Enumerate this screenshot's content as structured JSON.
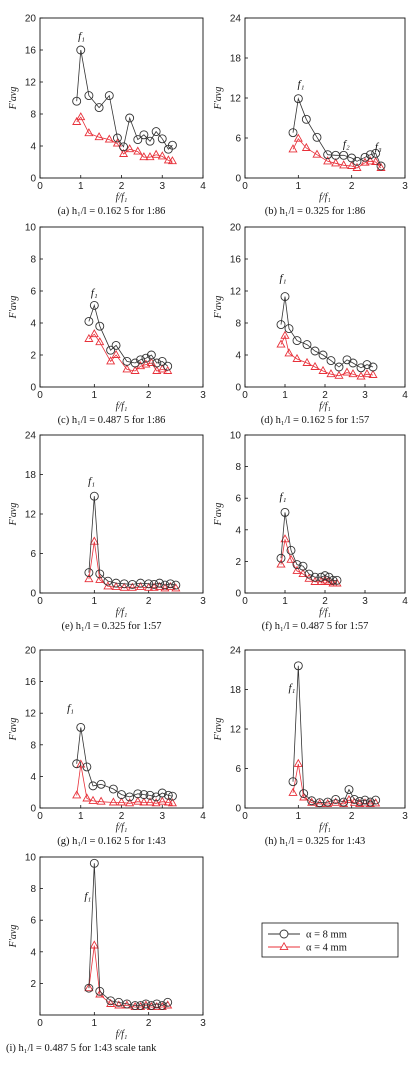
{
  "legend": {
    "series": [
      {
        "label": "α = 8 mm",
        "color": "#333333",
        "marker": "circle"
      },
      {
        "label": "α = 4 mm",
        "color": "#e8313a",
        "marker": "triangle"
      }
    ]
  },
  "chart_data": [
    {
      "id": "a",
      "type": "line",
      "caption": "(a) h₁/l = 0.162 5 for 1:86",
      "xlabel": "f/f₁",
      "ylabel": "F′avg",
      "xlim": [
        0,
        4
      ],
      "ylim": [
        0,
        20
      ],
      "xticks": [
        0,
        1,
        2,
        3,
        4
      ],
      "yticks": [
        0,
        4,
        8,
        12,
        16,
        20
      ],
      "annotations": [
        {
          "text": "f₁",
          "x": 1.02,
          "y": 17.3
        }
      ],
      "series": [
        {
          "name": "α = 8 mm",
          "x": [
            0.9,
            1.0,
            1.2,
            1.45,
            1.7,
            1.9,
            2.05,
            2.2,
            2.4,
            2.55,
            2.7,
            2.85,
            3.0,
            3.15,
            3.25
          ],
          "y": [
            9.6,
            16.0,
            10.3,
            8.8,
            10.3,
            5.0,
            3.9,
            7.5,
            4.8,
            5.4,
            4.6,
            5.8,
            4.9,
            3.6,
            4.1
          ]
        },
        {
          "name": "α = 4 mm",
          "x": [
            0.9,
            1.0,
            1.2,
            1.45,
            1.7,
            1.9,
            2.05,
            2.2,
            2.4,
            2.55,
            2.7,
            2.85,
            3.0,
            3.15,
            3.25
          ],
          "y": [
            7.0,
            7.6,
            5.6,
            5.1,
            4.8,
            4.3,
            3.0,
            3.6,
            3.3,
            2.6,
            2.6,
            2.9,
            2.7,
            2.2,
            2.1
          ]
        }
      ]
    },
    {
      "id": "b",
      "type": "line",
      "caption": "(b) h₁/l = 0.325 for 1:86",
      "xlabel": "f/f₁",
      "ylabel": "F′avg",
      "xlim": [
        0,
        3
      ],
      "ylim": [
        0,
        24
      ],
      "xticks": [
        0,
        1,
        2,
        3
      ],
      "yticks": [
        0,
        6,
        12,
        18,
        24
      ],
      "annotations": [
        {
          "text": "f₁",
          "x": 1.05,
          "y": 13.6
        },
        {
          "text": "f₂",
          "x": 1.9,
          "y": 4.6
        },
        {
          "text": "f₃",
          "x": 2.5,
          "y": 4.2
        }
      ],
      "series": [
        {
          "name": "α = 8 mm",
          "x": [
            0.9,
            1.0,
            1.15,
            1.35,
            1.55,
            1.7,
            1.85,
            2.0,
            2.1,
            2.25,
            2.35,
            2.45,
            2.55
          ],
          "y": [
            6.8,
            11.9,
            8.8,
            6.1,
            3.5,
            3.4,
            3.4,
            3.0,
            2.5,
            3.1,
            3.5,
            3.7,
            1.8
          ]
        },
        {
          "name": "α = 4 mm",
          "x": [
            0.9,
            1.0,
            1.15,
            1.35,
            1.55,
            1.7,
            1.85,
            2.0,
            2.1,
            2.25,
            2.35,
            2.45,
            2.55
          ],
          "y": [
            4.3,
            5.9,
            4.5,
            3.5,
            2.5,
            2.2,
            1.9,
            1.8,
            1.5,
            2.3,
            2.5,
            2.4,
            1.5
          ]
        }
      ]
    },
    {
      "id": "c",
      "type": "line",
      "caption": "(c) h₁/l = 0.487 5 for 1:86",
      "xlabel": "f/f₁",
      "ylabel": "F′avg",
      "xlim": [
        0,
        3
      ],
      "ylim": [
        0,
        10
      ],
      "xticks": [
        0,
        1,
        2,
        3
      ],
      "yticks": [
        0,
        2,
        4,
        6,
        8,
        10
      ],
      "annotations": [
        {
          "text": "f₁",
          "x": 1.0,
          "y": 5.7
        }
      ],
      "series": [
        {
          "name": "α = 8 mm",
          "x": [
            0.9,
            1.0,
            1.1,
            1.3,
            1.4,
            1.6,
            1.75,
            1.85,
            1.95,
            2.05,
            2.15,
            2.25,
            2.35
          ],
          "y": [
            4.1,
            5.1,
            3.8,
            2.3,
            2.6,
            1.6,
            1.5,
            1.7,
            1.8,
            2.0,
            1.5,
            1.6,
            1.3
          ]
        },
        {
          "name": "α = 4 mm",
          "x": [
            0.9,
            1.0,
            1.1,
            1.3,
            1.4,
            1.6,
            1.75,
            1.85,
            1.95,
            2.05,
            2.15,
            2.25,
            2.35
          ],
          "y": [
            3.0,
            3.3,
            2.8,
            1.6,
            2.0,
            1.1,
            1.0,
            1.3,
            1.4,
            1.5,
            1.0,
            1.1,
            1.0
          ]
        }
      ]
    },
    {
      "id": "d",
      "type": "line",
      "caption": "(d) h₁/l = 0.162 5 for 1:57",
      "xlabel": "f/f₁",
      "ylabel": "F′avg",
      "xlim": [
        0,
        4
      ],
      "ylim": [
        0,
        20
      ],
      "xticks": [
        0,
        1,
        2,
        3,
        4
      ],
      "yticks": [
        0,
        4,
        8,
        12,
        16,
        20
      ],
      "annotations": [
        {
          "text": "f₁",
          "x": 0.95,
          "y": 13.2
        }
      ],
      "series": [
        {
          "name": "α = 8 mm",
          "x": [
            0.9,
            1.0,
            1.1,
            1.3,
            1.55,
            1.75,
            1.95,
            2.15,
            2.35,
            2.55,
            2.7,
            2.9,
            3.05,
            3.2
          ],
          "y": [
            7.8,
            11.3,
            7.3,
            5.8,
            5.3,
            4.5,
            4.0,
            3.3,
            2.5,
            3.4,
            3.0,
            2.4,
            2.8,
            2.5
          ]
        },
        {
          "name": "α = 4 mm",
          "x": [
            0.9,
            1.0,
            1.1,
            1.3,
            1.55,
            1.75,
            1.95,
            2.15,
            2.35,
            2.55,
            2.7,
            2.9,
            3.05,
            3.2
          ],
          "y": [
            5.3,
            6.4,
            4.2,
            3.5,
            3.0,
            2.5,
            2.0,
            1.6,
            1.4,
            1.8,
            1.6,
            1.3,
            1.6,
            1.5
          ]
        }
      ]
    },
    {
      "id": "e",
      "type": "line",
      "caption": "(e) h₁/l = 0.325 for 1:57",
      "xlabel": "f/f₁",
      "ylabel": "F′avg",
      "xlim": [
        0,
        3
      ],
      "ylim": [
        0,
        24
      ],
      "xticks": [
        0,
        1,
        2,
        3
      ],
      "yticks": [
        0,
        6,
        12,
        18,
        24
      ],
      "annotations": [
        {
          "text": "f₁",
          "x": 0.95,
          "y": 16.5
        }
      ],
      "series": [
        {
          "name": "α = 8 mm",
          "x": [
            0.9,
            1.0,
            1.1,
            1.25,
            1.4,
            1.55,
            1.7,
            1.85,
            2.0,
            2.1,
            2.2,
            2.3,
            2.4,
            2.5
          ],
          "y": [
            3.1,
            14.7,
            2.9,
            1.8,
            1.5,
            1.4,
            1.3,
            1.5,
            1.4,
            1.3,
            1.5,
            1.2,
            1.4,
            1.2
          ]
        },
        {
          "name": "α = 4 mm",
          "x": [
            0.9,
            1.0,
            1.1,
            1.25,
            1.4,
            1.55,
            1.7,
            1.85,
            2.0,
            2.1,
            2.2,
            2.3,
            2.4,
            2.5
          ],
          "y": [
            2.1,
            7.8,
            2.0,
            1.0,
            0.9,
            0.8,
            0.8,
            0.9,
            0.8,
            0.8,
            0.9,
            0.7,
            0.9,
            0.7
          ]
        }
      ]
    },
    {
      "id": "f",
      "type": "line",
      "caption": "(f) h₁/l = 0.487 5 for 1:57",
      "xlabel": "f/f₁",
      "ylabel": "F′avg",
      "xlim": [
        0,
        4
      ],
      "ylim": [
        0,
        10
      ],
      "xticks": [
        0,
        1,
        2,
        3,
        4
      ],
      "yticks": [
        0,
        2,
        4,
        6,
        8,
        10
      ],
      "annotations": [
        {
          "text": "f₁",
          "x": 0.95,
          "y": 5.9
        }
      ],
      "series": [
        {
          "name": "α = 8 mm",
          "x": [
            0.9,
            1.0,
            1.15,
            1.3,
            1.45,
            1.6,
            1.75,
            1.9,
            2.0,
            2.1,
            2.2,
            2.3
          ],
          "y": [
            2.2,
            5.1,
            2.7,
            1.8,
            1.7,
            1.2,
            1.0,
            1.0,
            1.1,
            1.0,
            0.8,
            0.8
          ]
        },
        {
          "name": "α = 4 mm",
          "x": [
            0.9,
            1.0,
            1.15,
            1.3,
            1.45,
            1.6,
            1.75,
            1.9,
            2.0,
            2.1,
            2.2,
            2.3
          ],
          "y": [
            1.8,
            3.4,
            2.1,
            1.4,
            1.2,
            0.9,
            0.7,
            0.7,
            0.8,
            0.7,
            0.6,
            0.6
          ]
        }
      ]
    },
    {
      "id": "g",
      "type": "line",
      "caption": "(g) h₁/l = 0.162 5 for 1:43",
      "xlabel": "f/f₁",
      "ylabel": "F′avg",
      "xlim": [
        0,
        4
      ],
      "ylim": [
        0,
        20
      ],
      "xticks": [
        0,
        1,
        2,
        3,
        4
      ],
      "yticks": [
        0,
        4,
        8,
        12,
        16,
        20
      ],
      "annotations": [
        {
          "text": "f₁",
          "x": 0.75,
          "y": 12.2
        }
      ],
      "series": [
        {
          "name": "α = 8 mm",
          "x": [
            0.9,
            1.0,
            1.15,
            1.3,
            1.5,
            1.8,
            2.0,
            2.2,
            2.4,
            2.55,
            2.7,
            2.85,
            3.0,
            3.15,
            3.25
          ],
          "y": [
            5.6,
            10.2,
            5.2,
            2.8,
            3.0,
            2.4,
            1.7,
            1.4,
            1.8,
            1.7,
            1.6,
            1.4,
            1.9,
            1.6,
            1.5
          ]
        },
        {
          "name": "α = 4 mm",
          "x": [
            0.9,
            1.0,
            1.15,
            1.3,
            1.5,
            1.8,
            2.0,
            2.2,
            2.4,
            2.55,
            2.7,
            2.85,
            3.0,
            3.15,
            3.25
          ],
          "y": [
            1.6,
            5.5,
            1.2,
            0.9,
            0.8,
            0.7,
            0.7,
            0.6,
            0.8,
            0.7,
            0.7,
            0.6,
            0.8,
            0.7,
            0.6
          ]
        }
      ]
    },
    {
      "id": "h",
      "type": "line",
      "caption": "(h) h₁/l = 0.325 for 1:43",
      "xlabel": "f/f₁",
      "ylabel": "F′avg",
      "xlim": [
        0,
        3
      ],
      "ylim": [
        0,
        24
      ],
      "xticks": [
        0,
        1,
        2,
        3
      ],
      "yticks": [
        0,
        6,
        12,
        18,
        24
      ],
      "annotations": [
        {
          "text": "f₁",
          "x": 0.88,
          "y": 17.8
        }
      ],
      "series": [
        {
          "name": "α = 8 mm",
          "x": [
            0.9,
            1.0,
            1.1,
            1.25,
            1.4,
            1.55,
            1.7,
            1.85,
            1.95,
            2.05,
            2.15,
            2.25,
            2.35,
            2.45
          ],
          "y": [
            4.0,
            21.6,
            2.2,
            1.1,
            0.8,
            0.9,
            1.3,
            0.9,
            2.8,
            1.3,
            1.0,
            1.2,
            0.9,
            1.2
          ]
        },
        {
          "name": "α = 4 mm",
          "x": [
            0.9,
            1.0,
            1.1,
            1.25,
            1.4,
            1.55,
            1.7,
            1.85,
            1.95,
            2.05,
            2.15,
            2.25,
            2.35,
            2.45
          ],
          "y": [
            2.3,
            6.7,
            1.6,
            0.8,
            0.6,
            0.6,
            0.8,
            0.6,
            1.2,
            0.8,
            0.6,
            0.7,
            0.6,
            0.7
          ]
        }
      ]
    },
    {
      "id": "i",
      "type": "line",
      "caption": "(i) h₁/l = 0.487 5 for 1:43  scale tank",
      "xlabel": "f/f₁",
      "ylabel": "F′avg",
      "xlim": [
        0,
        3
      ],
      "ylim": [
        0,
        10
      ],
      "xticks": [
        0,
        1,
        2,
        3
      ],
      "yticks": [
        2,
        4,
        6,
        8,
        10
      ],
      "annotations": [
        {
          "text": "f₁",
          "x": 0.88,
          "y": 7.3
        }
      ],
      "series": [
        {
          "name": "α = 8 mm",
          "x": [
            0.9,
            1.0,
            1.1,
            1.3,
            1.45,
            1.6,
            1.75,
            1.85,
            1.95,
            2.05,
            2.15,
            2.25,
            2.35
          ],
          "y": [
            1.7,
            9.6,
            1.5,
            0.9,
            0.8,
            0.7,
            0.6,
            0.6,
            0.7,
            0.6,
            0.7,
            0.6,
            0.8
          ]
        },
        {
          "name": "α = 4 mm",
          "x": [
            0.9,
            1.0,
            1.1,
            1.3,
            1.45,
            1.6,
            1.75,
            1.85,
            1.95,
            2.05,
            2.15,
            2.25,
            2.35
          ],
          "y": [
            1.7,
            4.4,
            1.3,
            0.7,
            0.6,
            0.6,
            0.5,
            0.5,
            0.6,
            0.5,
            0.5,
            0.5,
            0.6
          ]
        }
      ]
    }
  ]
}
